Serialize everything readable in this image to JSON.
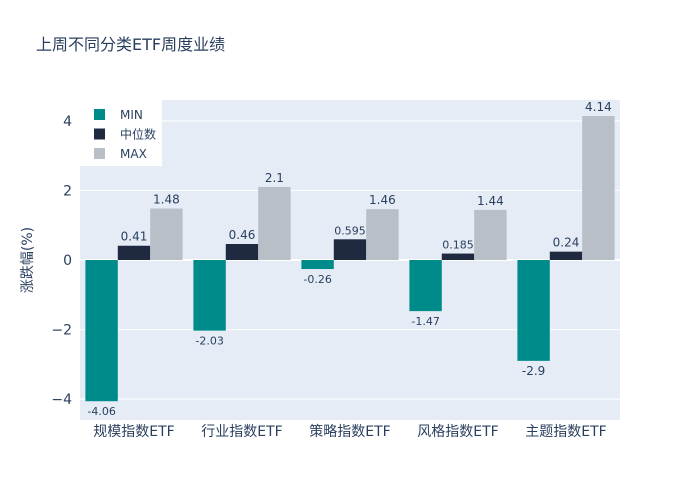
{
  "colors": {
    "background": "#ffffff",
    "plot_background": "#e5ecf6",
    "grid": "#ffffff",
    "text": "#2a3f5f"
  },
  "chart_data": {
    "type": "bar",
    "title": "上周不同分类ETF周度业绩",
    "xlabel": "",
    "ylabel": "涨跌幅(%)",
    "categories": [
      "规模指数ETF",
      "行业指数ETF",
      "策略指数ETF",
      "风格指数ETF",
      "主题指数ETF"
    ],
    "series": [
      {
        "name": "MIN",
        "color": "#008b8b",
        "values": [
          -4.06,
          -2.03,
          -0.26,
          -1.47,
          -2.9
        ],
        "labels": [
          "-4.06",
          "-2.03",
          "-0.26",
          "-1.47",
          "-2.9"
        ]
      },
      {
        "name": "中位数",
        "color": "#1f2a40",
        "values": [
          0.41,
          0.46,
          0.595,
          0.185,
          0.24
        ],
        "labels": [
          "0.41",
          "0.46",
          "0.595",
          "0.185",
          "0.24"
        ]
      },
      {
        "name": "MAX",
        "color": "#b8bfc7",
        "values": [
          1.48,
          2.1,
          1.46,
          1.44,
          4.14
        ],
        "labels": [
          "1.48",
          "2.1",
          "1.46",
          "1.44",
          "4.14"
        ]
      }
    ],
    "ylim": [
      -4.6,
      4.6
    ],
    "yticks": [
      -4,
      -2,
      0,
      2,
      4
    ],
    "ytick_labels": [
      "−4",
      "−2",
      "0",
      "2",
      "4"
    ],
    "grid": true,
    "legend_position": "top-left"
  }
}
